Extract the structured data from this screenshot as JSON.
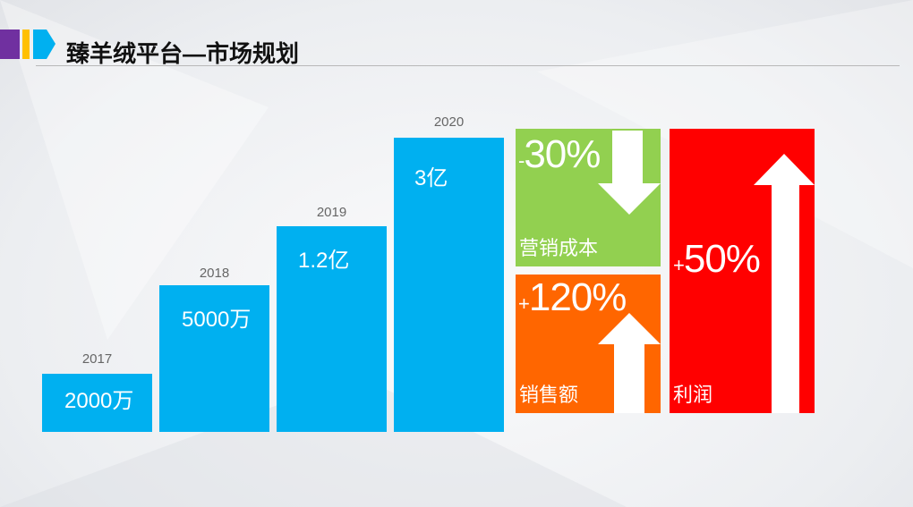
{
  "header": {
    "title": "臻羊绒平台—市场规划"
  },
  "bars": [
    {
      "year": "2017",
      "label": "2000万"
    },
    {
      "year": "2018",
      "label": "5000万"
    },
    {
      "year": "2019",
      "label": "1.2亿"
    },
    {
      "year": "2020",
      "label": "3亿"
    }
  ],
  "boxes": [
    {
      "sign": "-",
      "number": "30%",
      "label": "营销成本"
    },
    {
      "sign": "+",
      "number": "120%",
      "label": "销售额"
    },
    {
      "sign": "+",
      "number": "50%",
      "label": "利润"
    }
  ]
}
